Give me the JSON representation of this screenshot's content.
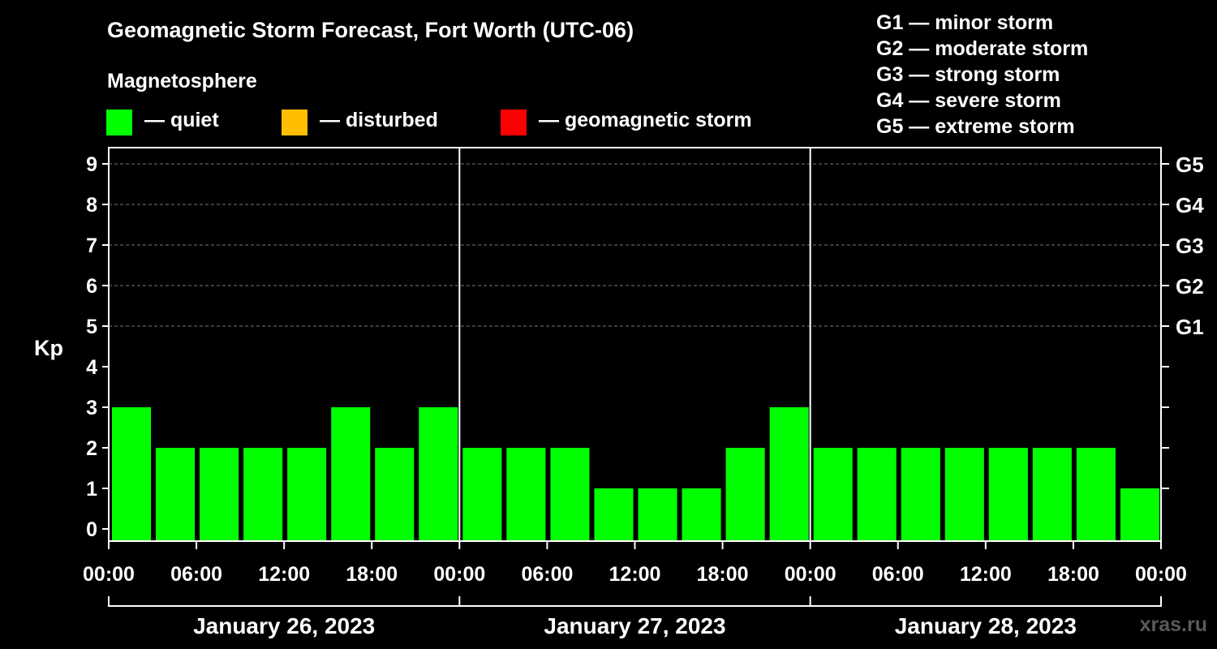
{
  "title": "Geomagnetic Storm Forecast, Fort Worth (UTC-06)",
  "legend": {
    "heading": "Magnetosphere",
    "items": [
      {
        "label": "— quiet",
        "color": "#00ff00"
      },
      {
        "label": "— disturbed",
        "color": "#ffbf00"
      },
      {
        "label": "— geomagnetic storm",
        "color": "#ff0000"
      }
    ]
  },
  "g_scale": [
    "G1 — minor storm",
    "G2 — moderate storm",
    "G3 — strong storm",
    "G4 — severe storm",
    "G5 — extreme storm"
  ],
  "watermark": "xras.ru",
  "chart_data": {
    "type": "bar",
    "ylabel": "Kp",
    "ylim": [
      0,
      9
    ],
    "y_ticks": [
      "0",
      "1",
      "2",
      "3",
      "4",
      "5",
      "6",
      "7",
      "8",
      "9"
    ],
    "right_ticks": [
      {
        "kp": 5,
        "label": "G1"
      },
      {
        "kp": 6,
        "label": "G2"
      },
      {
        "kp": 7,
        "label": "G3"
      },
      {
        "kp": 8,
        "label": "G4"
      },
      {
        "kp": 9,
        "label": "G5"
      }
    ],
    "grid": "horizontal dashed at Kp 5-9",
    "x_tick_labels": [
      "00:00",
      "06:00",
      "12:00",
      "18:00",
      "00:00",
      "06:00",
      "12:00",
      "18:00",
      "00:00",
      "06:00",
      "12:00",
      "18:00",
      "00:00"
    ],
    "days": [
      "January 26, 2023",
      "January 27, 2023",
      "January 28, 2023"
    ],
    "interval_hours": 3,
    "series": [
      {
        "values": [
          3,
          2,
          2,
          2,
          2,
          3,
          2,
          3,
          2,
          2,
          2,
          1,
          1,
          1,
          2,
          3,
          2,
          2,
          2,
          2,
          2,
          2,
          2,
          1
        ],
        "color": "#00ff00"
      }
    ]
  }
}
